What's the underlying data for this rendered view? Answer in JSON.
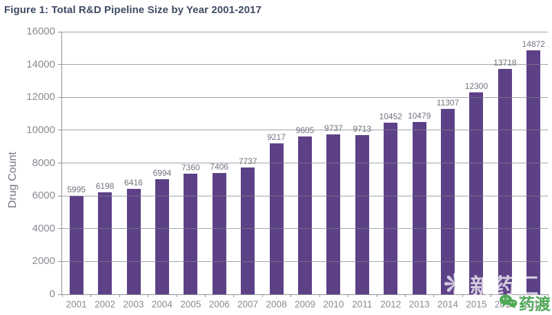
{
  "chart_data": {
    "type": "bar",
    "title": "Figure 1: Total R&D Pipeline Size by Year 2001-2017",
    "categories": [
      "2001",
      "2002",
      "2003",
      "2004",
      "2005",
      "2006",
      "2007",
      "2008",
      "2009",
      "2010",
      "2011",
      "2012",
      "2013",
      "2014",
      "2015",
      "2016",
      "2017"
    ],
    "values": [
      5995,
      6198,
      6416,
      6994,
      7360,
      7406,
      7737,
      9217,
      9605,
      9737,
      9713,
      10452,
      10479,
      11307,
      12300,
      13718,
      14872
    ],
    "xlabel": "",
    "ylabel": "Drug Count",
    "ylim": [
      0,
      16000
    ],
    "ytick_step": 2000,
    "grid": true,
    "legend": "none",
    "bar_color": "#5d4187"
  },
  "colors": {
    "bar": "#5d4187",
    "title": "#3e4a63",
    "axis_label": "#8a8a92",
    "data_label": "#75707e",
    "gridline": "#7d7f8c",
    "y_axis_title": "#7b7283",
    "watermark_green": "#4fa956",
    "watermark_white": "#ffffff"
  },
  "watermarks": {
    "overlay_icon": "clover-logo-icon",
    "overlay_text": "新药汇",
    "corner_icon": "chat-bubbles-icon",
    "corner_text": "药渡"
  }
}
